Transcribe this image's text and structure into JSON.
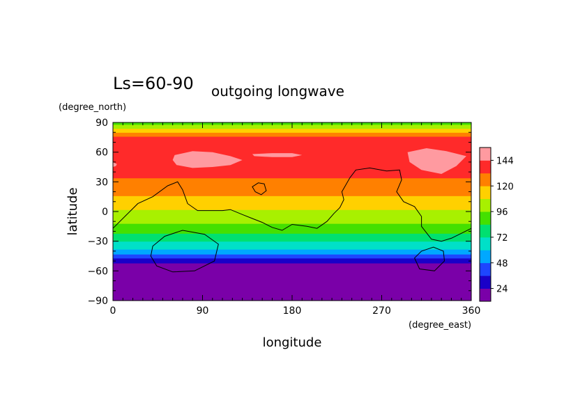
{
  "chart_data": {
    "type": "heatmap",
    "title_left": "Ls=60-90",
    "title_right": "outgoing longwave",
    "xlabel": "longitude",
    "ylabel": "latitude",
    "x_units": "(degree_east)",
    "y_units": "(degree_north)",
    "xlim": [
      0,
      360
    ],
    "ylim": [
      -90,
      90
    ],
    "x_ticks": [
      0,
      90,
      180,
      270,
      360
    ],
    "y_ticks": [
      90,
      60,
      30,
      0,
      -30,
      -60,
      -90
    ],
    "colorbar": {
      "levels": [
        12,
        24,
        36,
        48,
        60,
        72,
        84,
        96,
        108,
        120,
        132,
        144,
        156
      ],
      "tick_labels": [
        24,
        48,
        72,
        96,
        120,
        144
      ],
      "colors": [
        "#7a00a8",
        "#1a00c8",
        "#1e46ff",
        "#00a8ff",
        "#00e0c8",
        "#00e070",
        "#44e000",
        "#a8f000",
        "#ffd000",
        "#ff8000",
        "#ff2a2a",
        "#ff9aa0"
      ]
    },
    "bands": [
      {
        "lat_from": -90,
        "lat_to": -52,
        "value": 18
      },
      {
        "lat_from": -52,
        "lat_to": -47,
        "value": 30
      },
      {
        "lat_from": -47,
        "lat_to": -43,
        "value": 42
      },
      {
        "lat_from": -43,
        "lat_to": -38,
        "value": 54
      },
      {
        "lat_from": -38,
        "lat_to": -30,
        "value": 66
      },
      {
        "lat_from": -30,
        "lat_to": -22,
        "value": 78
      },
      {
        "lat_from": -22,
        "lat_to": -12,
        "value": 90
      },
      {
        "lat_from": -12,
        "lat_to": 2,
        "value": 102
      },
      {
        "lat_from": 2,
        "lat_to": 16,
        "value": 114
      },
      {
        "lat_from": 16,
        "lat_to": 34,
        "value": 126
      },
      {
        "lat_from": 34,
        "lat_to": 76,
        "value": 138
      },
      {
        "lat_from": 76,
        "lat_to": 80,
        "value": 126
      },
      {
        "lat_from": 80,
        "lat_to": 84,
        "value": 114
      },
      {
        "lat_from": 84,
        "lat_to": 88,
        "value": 102
      },
      {
        "lat_from": 88,
        "lat_to": 90,
        "value": 90
      }
    ],
    "high_regions": [
      {
        "value": 150,
        "points": [
          [
            62,
            57
          ],
          [
            80,
            61
          ],
          [
            100,
            60
          ],
          [
            118,
            56
          ],
          [
            130,
            52
          ],
          [
            118,
            47
          ],
          [
            100,
            45
          ],
          [
            80,
            44
          ],
          [
            64,
            47
          ],
          [
            60,
            52
          ]
        ]
      },
      {
        "value": 150,
        "points": [
          [
            140,
            58
          ],
          [
            160,
            59
          ],
          [
            180,
            59
          ],
          [
            190,
            57
          ],
          [
            180,
            55
          ],
          [
            160,
            55
          ],
          [
            142,
            56
          ]
        ]
      },
      {
        "value": 150,
        "points": [
          [
            296,
            60
          ],
          [
            315,
            64
          ],
          [
            335,
            61
          ],
          [
            355,
            56
          ],
          [
            345,
            46
          ],
          [
            330,
            38
          ],
          [
            310,
            42
          ],
          [
            298,
            50
          ]
        ]
      },
      {
        "value": 150,
        "points": [
          [
            0,
            50
          ],
          [
            4,
            48
          ],
          [
            3,
            46
          ],
          [
            0,
            45
          ]
        ]
      }
    ],
    "coastlines": [
      {
        "closed": false,
        "points": [
          [
            0,
            -17
          ],
          [
            12,
            -5
          ],
          [
            25,
            8
          ],
          [
            40,
            15
          ],
          [
            55,
            26
          ],
          [
            65,
            30
          ],
          [
            70,
            22
          ],
          [
            75,
            8
          ],
          [
            85,
            1
          ],
          [
            100,
            1
          ],
          [
            110,
            1
          ],
          [
            118,
            2
          ],
          [
            130,
            -3
          ],
          [
            140,
            -7
          ],
          [
            150,
            -11
          ],
          [
            160,
            -16
          ],
          [
            170,
            -19
          ],
          [
            180,
            -13
          ],
          [
            195,
            -15
          ],
          [
            205,
            -17
          ],
          [
            215,
            -10
          ],
          [
            222,
            -2
          ],
          [
            228,
            4
          ],
          [
            232,
            12
          ],
          [
            230,
            20
          ],
          [
            234,
            27
          ],
          [
            238,
            34
          ],
          [
            244,
            42
          ],
          [
            258,
            44
          ],
          [
            275,
            41
          ],
          [
            288,
            42
          ],
          [
            290,
            32
          ],
          [
            285,
            20
          ],
          [
            292,
            10
          ],
          [
            303,
            5
          ],
          [
            310,
            -5
          ],
          [
            310,
            -15
          ],
          [
            320,
            -28
          ],
          [
            330,
            -30
          ],
          [
            340,
            -27
          ],
          [
            352,
            -21
          ],
          [
            360,
            -17
          ]
        ]
      },
      {
        "closed": true,
        "points": [
          [
            140,
            25
          ],
          [
            146,
            29
          ],
          [
            152,
            28
          ],
          [
            154,
            21
          ],
          [
            149,
            17
          ],
          [
            143,
            20
          ]
        ]
      },
      {
        "closed": true,
        "points": [
          [
            40,
            -35
          ],
          [
            52,
            -25
          ],
          [
            70,
            -19
          ],
          [
            92,
            -23
          ],
          [
            106,
            -33
          ],
          [
            102,
            -50
          ],
          [
            82,
            -60
          ],
          [
            60,
            -61
          ],
          [
            44,
            -55
          ],
          [
            38,
            -45
          ]
        ]
      },
      {
        "closed": true,
        "points": [
          [
            303,
            -47
          ],
          [
            310,
            -40
          ],
          [
            322,
            -36
          ],
          [
            332,
            -40
          ],
          [
            333,
            -50
          ],
          [
            323,
            -60
          ],
          [
            308,
            -58
          ]
        ]
      }
    ]
  }
}
